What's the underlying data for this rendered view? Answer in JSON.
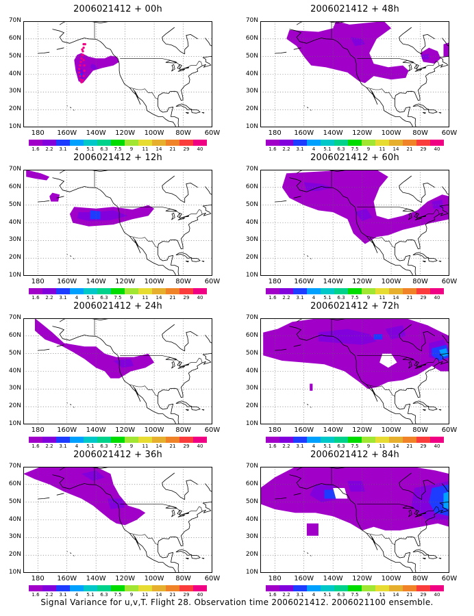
{
  "caption": "Signal Variance for u,v,T. Flight 28. Observation time 2006021412. 2006021100 ensemble.",
  "colorbar": {
    "levels": [
      "1.6",
      "2.2",
      "3.1",
      "4",
      "5.1",
      "6.3",
      "7.5",
      "9",
      "11",
      "14",
      "21",
      "29",
      "40"
    ],
    "colors": [
      "#a000c8",
      "#8200dc",
      "#1e3cff",
      "#00a0ff",
      "#00c8c8",
      "#00d28c",
      "#00dc00",
      "#a0e632",
      "#e6dc32",
      "#e6af2d",
      "#f08228",
      "#fa3c3c",
      "#f00082"
    ]
  },
  "axes": {
    "y_labels": [
      "70N",
      "60N",
      "50N",
      "40N",
      "30N",
      "20N",
      "10N"
    ],
    "x_labels": [
      "180",
      "160W",
      "140W",
      "120W",
      "100W",
      "80W",
      "60W"
    ],
    "lon_range": [
      -190,
      -60
    ],
    "lat_range": [
      10,
      70
    ]
  },
  "chart_data": [
    {
      "type": "heatmap",
      "title": "2006021412 + 00h",
      "lead_hours": 0
    },
    {
      "type": "heatmap",
      "title": "2006021412 + 48h",
      "lead_hours": 48
    },
    {
      "type": "heatmap",
      "title": "2006021412 + 12h",
      "lead_hours": 12
    },
    {
      "type": "heatmap",
      "title": "2006021412 + 60h",
      "lead_hours": 60
    },
    {
      "type": "heatmap",
      "title": "2006021412 + 24h",
      "lead_hours": 24
    },
    {
      "type": "heatmap",
      "title": "2006021412 + 72h",
      "lead_hours": 72
    },
    {
      "type": "heatmap",
      "title": "2006021412 + 36h",
      "lead_hours": 36
    },
    {
      "type": "heatmap",
      "title": "2006021412 + 84h",
      "lead_hours": 84
    }
  ]
}
